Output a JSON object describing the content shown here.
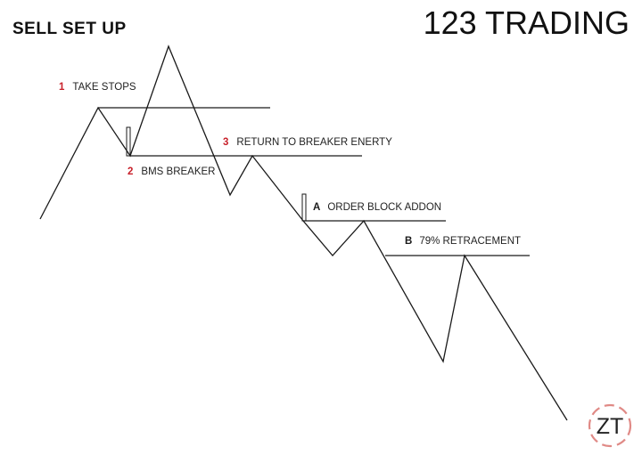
{
  "header": {
    "title_left": "SELL SET UP",
    "title_right": "123 TRADING"
  },
  "labels": [
    {
      "num": "1",
      "text": "TAKE STOPS"
    },
    {
      "num": "2",
      "text": "BMS BREAKER"
    },
    {
      "num": "3",
      "text": "RETURN TO BREAKER ENERTY"
    },
    {
      "num": "A",
      "text": "ORDER BLOCK ADDON"
    },
    {
      "num": "B",
      "text": "79% RETRACEMENT"
    }
  ],
  "logo": {
    "text": "ZT"
  },
  "colors": {
    "number_red": "#c8202a",
    "number_dark": "#1a1a1a",
    "logo_ring": "#e08a86"
  }
}
